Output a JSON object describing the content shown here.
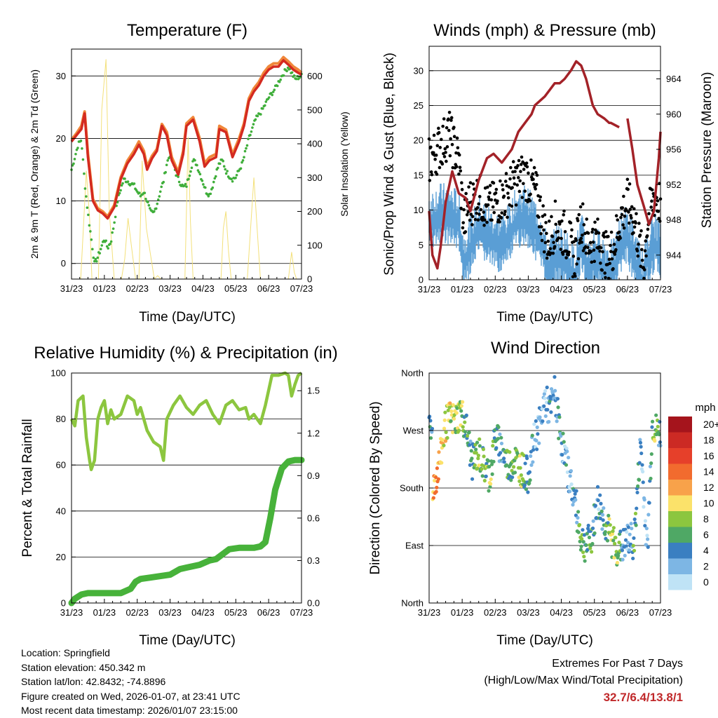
{
  "x_ticks": [
    "31/23",
    "01/23",
    "02/23",
    "03/23",
    "04/23",
    "05/23",
    "06/23",
    "07/23"
  ],
  "x_label": "Time (Day/UTC)",
  "colors": {
    "red": "#d42a20",
    "orange": "#f0873a",
    "green": "#3fae3a",
    "yellow": "#f3e07a",
    "black": "#000000",
    "blue": "#5b9fd5",
    "maroon": "#a32228",
    "rh": "#8cc63f",
    "precip": "#47b23a",
    "grid": "#000000"
  },
  "temp": {
    "title": "Temperature (F)",
    "ylabel_left": "2m & 9m T (Red, Orange) & 2m Td (Green)",
    "ylabel_right": "Solar Insolation (Yellow)",
    "left_ticks": [
      "0",
      "10",
      "20",
      "30"
    ],
    "right_ticks": [
      "0",
      "100",
      "200",
      "300",
      "400",
      "500",
      "600"
    ],
    "chart_data": {
      "type": "line",
      "ylim": [
        -2.5,
        34.3
      ],
      "y2lim": [
        0,
        680
      ],
      "xlim": [
        0,
        7
      ],
      "series": [
        {
          "name": "2m T",
          "axis": "left",
          "x": [
            0,
            0.15,
            0.3,
            0.4,
            0.5,
            0.65,
            0.8,
            0.95,
            1.1,
            1.3,
            1.5,
            1.7,
            1.9,
            2.05,
            2.2,
            2.3,
            2.45,
            2.6,
            2.75,
            2.9,
            3.05,
            3.25,
            3.4,
            3.5,
            3.7,
            3.9,
            4.05,
            4.2,
            4.4,
            4.5,
            4.7,
            4.9,
            5.1,
            5.25,
            5.4,
            5.55,
            5.7,
            5.85,
            6.0,
            6.15,
            6.3,
            6.45,
            6.6,
            6.75,
            6.9,
            7.0
          ],
          "y": [
            19.5,
            20.5,
            21.5,
            24.0,
            17.0,
            10.0,
            8.5,
            8.0,
            7.2,
            9.0,
            13.5,
            16.0,
            17.5,
            19.0,
            17.5,
            15.0,
            16.8,
            18.0,
            22.0,
            20.5,
            16.5,
            14.2,
            17.5,
            22.0,
            23.0,
            19.5,
            15.5,
            16.5,
            17.0,
            21.5,
            21.0,
            17.0,
            19.5,
            22.0,
            26.0,
            27.5,
            28.5,
            30.0,
            31.0,
            31.5,
            31.5,
            32.5,
            31.8,
            31.0,
            30.5,
            30.2
          ]
        },
        {
          "name": "9m T",
          "axis": "left",
          "x": [
            0,
            0.15,
            0.3,
            0.4,
            0.5,
            0.65,
            0.8,
            0.95,
            1.1,
            1.3,
            1.5,
            1.7,
            1.9,
            2.05,
            2.2,
            2.3,
            2.45,
            2.6,
            2.75,
            2.9,
            3.05,
            3.25,
            3.4,
            3.5,
            3.7,
            3.9,
            4.05,
            4.2,
            4.4,
            4.5,
            4.7,
            4.9,
            5.1,
            5.25,
            5.4,
            5.55,
            5.7,
            5.85,
            6.0,
            6.15,
            6.3,
            6.45,
            6.6,
            6.75,
            6.9,
            7.0
          ],
          "y": [
            19.8,
            20.8,
            22.0,
            24.3,
            17.5,
            10.3,
            8.8,
            8.3,
            7.5,
            9.3,
            13.8,
            16.4,
            18.0,
            19.5,
            18.0,
            15.5,
            17.2,
            18.3,
            22.3,
            21.0,
            17.0,
            14.6,
            18.0,
            22.4,
            23.4,
            20.0,
            16.0,
            17.0,
            17.5,
            22.0,
            21.4,
            17.4,
            20.0,
            22.4,
            26.4,
            28.0,
            29.0,
            30.5,
            31.5,
            32.0,
            32.0,
            33.0,
            32.3,
            31.5,
            31.0,
            30.5
          ]
        },
        {
          "name": "2m Td",
          "axis": "left",
          "x": [
            0,
            0.1,
            0.2,
            0.3,
            0.4,
            0.5,
            0.6,
            0.7,
            0.8,
            0.9,
            1.0,
            1.1,
            1.2,
            1.3,
            1.4,
            1.5,
            1.6,
            1.7,
            1.8,
            1.9,
            2.0,
            2.1,
            2.2,
            2.3,
            2.4,
            2.5,
            2.6,
            2.7,
            2.8,
            2.9,
            3.0,
            3.1,
            3.2,
            3.3,
            3.4,
            3.5,
            3.6,
            3.7,
            3.8,
            3.9,
            4.0,
            4.1,
            4.2,
            4.3,
            4.4,
            4.5,
            4.6,
            4.7,
            4.8,
            4.9,
            5.0,
            5.2,
            5.4,
            5.6,
            5.8,
            6.0,
            6.2,
            6.4,
            6.6,
            6.8,
            7.0
          ],
          "y": [
            15.0,
            17.0,
            19.0,
            19.8,
            13.0,
            8.0,
            4.0,
            0.0,
            1.0,
            2.5,
            4.0,
            2.5,
            3.5,
            6.5,
            10.0,
            12.0,
            13.5,
            13.2,
            12.8,
            12.5,
            11.5,
            10.8,
            11.5,
            10.0,
            8.2,
            8.0,
            9.5,
            11.5,
            13.2,
            16.0,
            17.5,
            16.0,
            14.0,
            13.0,
            12.2,
            12.5,
            14.5,
            16.5,
            16.0,
            14.5,
            13.0,
            11.5,
            11.0,
            12.5,
            14.5,
            16.0,
            16.5,
            14.8,
            14.0,
            13.5,
            13.8,
            16.0,
            20.0,
            23.0,
            24.5,
            26.5,
            28.0,
            30.0,
            31.5,
            29.5,
            30.0
          ]
        },
        {
          "name": "Solar Insolation",
          "axis": "right",
          "x": [
            0.28,
            0.36,
            0.45,
            0.55,
            0.62,
            0.82,
            0.92,
            1.05,
            1.15,
            1.3,
            1.52,
            1.62,
            1.72,
            1.82,
            1.95,
            2.05,
            2.15,
            2.28,
            2.52,
            2.62,
            2.72,
            3.45,
            3.55,
            3.62,
            3.7,
            4.55,
            4.62,
            4.7,
            4.78,
            4.86,
            5.1,
            5.35,
            5.55,
            5.65,
            5.75,
            6.6,
            6.7,
            6.78,
            6.85
          ],
          "y": [
            0,
            150,
            320,
            180,
            0,
            0,
            500,
            650,
            200,
            0,
            0,
            60,
            180,
            100,
            0,
            0,
            350,
            150,
            0,
            10,
            0,
            0,
            420,
            170,
            0,
            0,
            150,
            200,
            80,
            0,
            0,
            0,
            300,
            150,
            0,
            0,
            80,
            20,
            0
          ]
        }
      ]
    }
  },
  "winds": {
    "title": "Winds (mph) & Pressure (mb)",
    "ylabel_left": "Sonic/Prop Wind & Gust (Blue, Black)",
    "ylabel_right": "Station Pressure (Maroon)",
    "left_ticks": [
      "0",
      "5",
      "10",
      "15",
      "20",
      "25",
      "30"
    ],
    "right_ticks": [
      "944",
      "948",
      "952",
      "956",
      "960",
      "964"
    ],
    "chart_data": {
      "type": "line",
      "ylim": [
        0,
        33.5
      ],
      "y2lim": [
        941.2,
        967.7
      ],
      "xlim": [
        0,
        7
      ],
      "series": [
        {
          "name": "Wind",
          "axis": "left",
          "x": [
            0,
            0.3,
            0.6,
            0.9,
            1.05,
            1.2,
            1.5,
            1.8,
            2.0,
            2.3,
            2.6,
            2.9,
            3.2,
            3.4,
            3.6,
            3.8,
            4.0,
            4.2,
            4.4,
            4.6,
            4.8,
            5.0,
            5.2,
            5.4,
            5.6,
            5.8,
            6.0,
            6.2,
            6.4,
            6.5,
            6.6,
            6.8,
            7.0
          ],
          "y": [
            9,
            10,
            10,
            9,
            3,
            5,
            8,
            7,
            6,
            6,
            9,
            10,
            8,
            6,
            2,
            4,
            4,
            3,
            1,
            6,
            2,
            4,
            3,
            2,
            2,
            6,
            7,
            4,
            1,
            0,
            4,
            6,
            5
          ]
        },
        {
          "name": "Gust",
          "axis": "left",
          "x": [
            0,
            0.3,
            0.6,
            0.9,
            1.05,
            1.2,
            1.5,
            1.8,
            2.0,
            2.3,
            2.6,
            2.9,
            3.2,
            3.4,
            3.6,
            3.8,
            4.0,
            4.2,
            4.4,
            4.6,
            4.8,
            5.0,
            5.2,
            5.4,
            5.6,
            5.8,
            6.0,
            6.2,
            6.4,
            6.5,
            6.6,
            6.8,
            7.0
          ],
          "y": [
            17,
            19,
            21,
            17,
            8,
            11,
            12,
            10,
            11,
            12,
            14,
            15,
            13,
            9,
            5,
            8,
            7,
            6,
            3,
            9,
            5,
            6,
            5,
            3,
            5,
            9,
            11,
            9,
            4,
            2,
            8,
            12,
            11
          ]
        },
        {
          "name": "Station Pressure",
          "axis": "right",
          "x": [
            0,
            0.1,
            0.25,
            0.35,
            0.5,
            0.7,
            0.9,
            1.1,
            1.25,
            1.5,
            1.75,
            1.95,
            2.2,
            2.5,
            2.7,
            2.9,
            3.1,
            3.2,
            3.5,
            3.8,
            3.95,
            4.1,
            4.3,
            4.45,
            4.6,
            4.75,
            4.95,
            5.1,
            5.3,
            5.45,
            5.5,
            5.75,
            5.85,
            6.0,
            6.15,
            6.3,
            6.5,
            6.65,
            6.8,
            6.95,
            7.0
          ],
          "y": [
            949,
            944,
            942.5,
            945,
            950,
            953.5,
            951,
            950.5,
            949,
            952.5,
            955,
            955.5,
            954.5,
            956,
            958,
            959,
            960,
            961,
            962,
            963.5,
            963.5,
            964,
            965,
            966,
            965.5,
            964,
            961,
            960,
            959.5,
            959,
            959,
            958.5,
            null,
            959.5,
            956,
            952,
            949.5,
            947.5,
            949,
            955,
            958
          ]
        }
      ]
    }
  },
  "rh": {
    "title": "Relative Humidity (%) & Precipitation (in)",
    "ylabel_left": "Percent & Total Rainfall",
    "left_ticks": [
      "0",
      "20",
      "40",
      "60",
      "80",
      "100"
    ],
    "right_ticks": [
      "0.0",
      "0.3",
      "0.6",
      "0.9",
      "1.2",
      "1.5"
    ],
    "chart_data": {
      "type": "line",
      "ylim": [
        0,
        100
      ],
      "y2lim": [
        0,
        1.625
      ],
      "xlim": [
        0,
        7
      ],
      "series": [
        {
          "name": "Relative Humidity",
          "axis": "left",
          "x": [
            0,
            0.1,
            0.2,
            0.35,
            0.45,
            0.55,
            0.6,
            0.7,
            0.8,
            0.9,
            1.0,
            1.1,
            1.2,
            1.3,
            1.5,
            1.7,
            1.9,
            2.0,
            2.1,
            2.2,
            2.3,
            2.5,
            2.7,
            2.8,
            2.9,
            3.1,
            3.3,
            3.5,
            3.7,
            3.9,
            4.1,
            4.3,
            4.5,
            4.7,
            4.9,
            5.1,
            5.3,
            5.4,
            5.55,
            5.65,
            5.75,
            5.9,
            6.1,
            6.3,
            6.5,
            6.6,
            6.7,
            6.8,
            6.9,
            7.0
          ],
          "y": [
            80,
            77,
            88,
            90,
            72,
            62,
            58,
            62,
            80,
            85,
            88,
            78,
            84,
            80,
            82,
            90,
            88,
            82,
            85,
            80,
            75,
            70,
            68,
            62,
            80,
            86,
            90,
            85,
            82,
            86,
            88,
            82,
            78,
            86,
            88,
            84,
            85,
            80,
            82,
            80,
            78,
            86,
            99,
            99,
            100,
            99,
            90,
            95,
            99,
            100
          ]
        },
        {
          "name": "Total Precipitation",
          "axis": "right",
          "x": [
            0,
            0.1,
            0.3,
            0.5,
            1.0,
            1.5,
            1.8,
            1.95,
            2.1,
            2.4,
            3.0,
            3.3,
            3.5,
            3.9,
            4.2,
            4.4,
            4.8,
            5.1,
            5.3,
            5.55,
            5.75,
            5.9,
            6.05,
            6.2,
            6.4,
            6.6,
            6.8,
            7.0
          ],
          "y": [
            0,
            0.03,
            0.06,
            0.07,
            0.07,
            0.07,
            0.1,
            0.15,
            0.17,
            0.18,
            0.2,
            0.24,
            0.25,
            0.27,
            0.3,
            0.31,
            0.38,
            0.39,
            0.39,
            0.39,
            0.4,
            0.43,
            0.6,
            0.8,
            0.95,
            1.0,
            1.01,
            1.01
          ]
        }
      ]
    }
  },
  "wdir": {
    "title": "Wind Direction",
    "ylabel_left": "Direction (Colored By Speed)",
    "dir_ticks": [
      "North",
      "West",
      "South",
      "East",
      "North"
    ],
    "legend_title": "mph",
    "legend_labels": [
      "20+",
      "18",
      "16",
      "14",
      "12",
      "10",
      "8",
      "6",
      "4",
      "2",
      "0"
    ],
    "legend_colors": [
      "#a5141c",
      "#cc2a24",
      "#e6402a",
      "#f26b2e",
      "#f8a24a",
      "#fbe26a",
      "#8cc63f",
      "#4fa865",
      "#3a7fc1",
      "#7db6e4",
      "#bfe3f6"
    ],
    "chart_data": {
      "type": "scatter",
      "ylim": [
        0,
        360
      ],
      "xlim": [
        0,
        7
      ],
      "series": [
        {
          "name": "Wind Direction",
          "x": [
            0.1,
            0.2,
            0.35,
            0.5,
            0.65,
            0.8,
            0.95,
            1.1,
            1.3,
            1.5,
            1.7,
            1.85,
            2.0,
            2.2,
            2.4,
            2.6,
            2.8,
            3.0,
            3.2,
            3.35,
            3.5,
            3.65,
            3.8,
            3.95,
            4.1,
            4.3,
            4.45,
            4.6,
            4.75,
            4.9,
            5.1,
            5.3,
            5.5,
            5.7,
            5.9,
            6.05,
            6.2,
            6.4,
            6.6,
            6.75,
            6.85,
            6.95
          ],
          "y": [
            180,
            195,
            230,
            280,
            290,
            285,
            300,
            280,
            220,
            235,
            210,
            200,
            260,
            240,
            215,
            225,
            210,
            200,
            260,
            280,
            320,
            300,
            330,
            270,
            230,
            185,
            150,
            100,
            90,
            100,
            160,
            130,
            100,
            85,
            90,
            100,
            95,
            250,
            80,
            280,
            270,
            265
          ],
          "speed": [
            12,
            13,
            12,
            10,
            9,
            8,
            8,
            6,
            5,
            7,
            6,
            8,
            5,
            4,
            7,
            6,
            9,
            4,
            3,
            3,
            2,
            3,
            3,
            4,
            3,
            2,
            4,
            7,
            4,
            6,
            3,
            4,
            9,
            7,
            3,
            2,
            6,
            3,
            1,
            6,
            8,
            5
          ]
        }
      ]
    }
  },
  "info": {
    "location": "Location: Springfield",
    "elevation": "Station elevation: 450.342 m",
    "latlon": "Station lat/lon: 42.8432; -74.8896",
    "created": "Figure created on Wed, 2026-01-07, at 23:41 UTC",
    "recent": "Most recent data timestamp: 2026/01/07 23:15:00"
  },
  "extremes": {
    "line1": "Extremes For Past 7 Days",
    "line2": "(High/Low/Max Wind/Total Precipitation)",
    "values": "32.7/6.4/13.8/1"
  }
}
